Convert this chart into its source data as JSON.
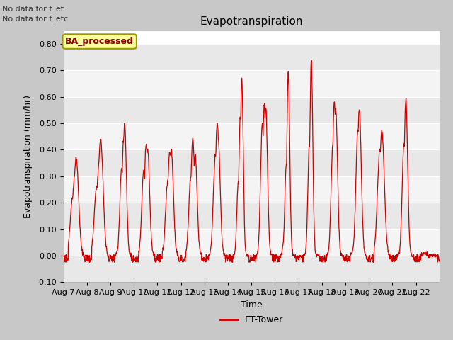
{
  "title": "Evapotranspiration",
  "ylabel": "Evapotranspiration (mm/hr)",
  "xlabel": "Time",
  "ylim": [
    -0.1,
    0.85
  ],
  "yticks": [
    -0.1,
    0.0,
    0.1,
    0.2,
    0.3,
    0.4,
    0.5,
    0.6,
    0.7,
    0.8
  ],
  "ytick_labels": [
    "-0.10",
    "0.00",
    "0.10",
    "0.20",
    "0.30",
    "0.40",
    "0.50",
    "0.60",
    "0.70",
    "0.80"
  ],
  "line_color": "#cc0000",
  "fig_bg_color": "#c8c8c8",
  "plot_bg_color": "#ffffff",
  "band_colors": [
    "#e8e8e8",
    "#f4f4f4"
  ],
  "annotation_text": "No data for f_et\nNo data for f_etc",
  "legend_label": "ET-Tower",
  "box_label": "BA_processed",
  "box_facecolor": "#ffff99",
  "box_edgecolor": "#999900",
  "start_day": 7,
  "n_days": 16,
  "xtick_labels": [
    "Aug 7",
    "Aug 8",
    "Aug 9",
    "Aug 10",
    "Aug 11",
    "Aug 12",
    "Aug 13",
    "Aug 14",
    "Aug 15",
    "Aug 16",
    "Aug 17",
    "Aug 18",
    "Aug 19",
    "Aug 20",
    "Aug 21",
    "Aug 22"
  ],
  "title_fontsize": 11,
  "label_fontsize": 9,
  "tick_fontsize": 8,
  "annotation_fontsize": 8
}
